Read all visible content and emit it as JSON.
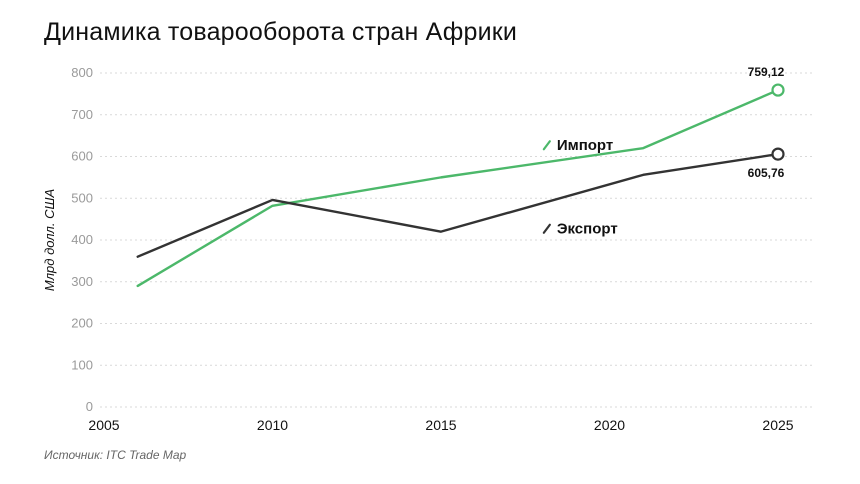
{
  "title": "Динамика товарооборота стран Африки",
  "source": "Источник: ITC Trade Map",
  "chart_data": {
    "type": "line",
    "title": "Динамика товарооборота стран Африки",
    "xlabel": "",
    "ylabel": "Млрд долл. США",
    "xlim": [
      2005,
      2025
    ],
    "ylim": [
      0,
      800
    ],
    "x_ticks": [
      2005,
      2010,
      2015,
      2020,
      2025
    ],
    "y_ticks": [
      0,
      100,
      200,
      300,
      400,
      500,
      600,
      700,
      800
    ],
    "grid": "horizontal dotted",
    "series": [
      {
        "name": "Импорт",
        "color": "#4cb86a",
        "x": [
          2006,
          2010,
          2015,
          2021,
          2025
        ],
        "y": [
          290,
          482,
          550,
          620,
          759.12
        ],
        "end_label": "759,12",
        "legend_position": [
          2018.2,
          627
        ]
      },
      {
        "name": "Экспорт",
        "color": "#333333",
        "x": [
          2006,
          2010,
          2015,
          2021,
          2025
        ],
        "y": [
          360,
          496,
          420,
          556,
          605.76
        ],
        "end_label": "605,76",
        "legend_position": [
          2018.2,
          427
        ]
      }
    ]
  }
}
